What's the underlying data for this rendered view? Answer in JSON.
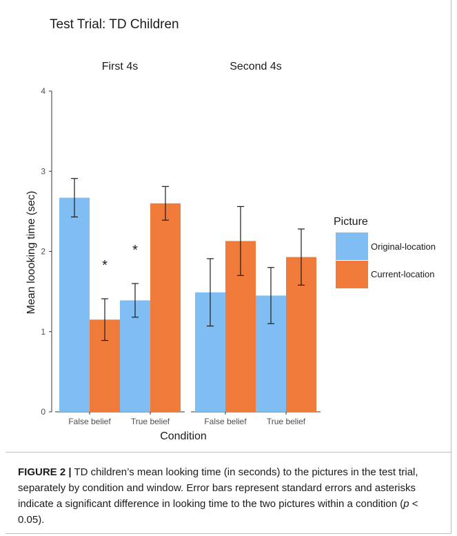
{
  "chart_data": {
    "type": "bar",
    "title": "Test Trial: TD Children",
    "xlabel": "Condition",
    "ylabel": "Mean loooking time (sec)",
    "ylim": [
      0,
      4
    ],
    "yticks": [
      0,
      1,
      2,
      3,
      4
    ],
    "grid": false,
    "legend": {
      "title": "Picture",
      "position": "right"
    },
    "panels": [
      {
        "label": "First 4s",
        "categories": [
          "False belief",
          "True belief"
        ],
        "series": [
          {
            "name": "Original-location",
            "color": "#7fbdf2",
            "values": [
              2.67,
              1.39
            ],
            "errors": [
              0.24,
              0.21
            ]
          },
          {
            "name": "Current-location",
            "color": "#f07a3a",
            "values": [
              1.15,
              2.6
            ],
            "errors": [
              0.26,
              0.21
            ]
          }
        ],
        "annotations": [
          {
            "category": "False belief",
            "text": "*"
          },
          {
            "category": "True belief",
            "text": "*"
          }
        ]
      },
      {
        "label": "Second 4s",
        "categories": [
          "False belief",
          "True belief"
        ],
        "series": [
          {
            "name": "Original-location",
            "color": "#7fbdf2",
            "values": [
              1.49,
              1.45
            ],
            "errors": [
              0.42,
              0.35
            ]
          },
          {
            "name": "Current-location",
            "color": "#f07a3a",
            "values": [
              2.13,
              1.93
            ],
            "errors": [
              0.43,
              0.35
            ]
          }
        ],
        "annotations": []
      }
    ]
  },
  "caption": {
    "label": "FIGURE 2 |",
    "text": " TD children’s mean looking time (in seconds) to the pictures in the test trial, separately by condition and window. Error bars represent standard errors and asterisks indicate a significant difference in looking time to the two pictures within a condition (",
    "p_symbol": "p",
    "p_rest": " < 0.05)."
  }
}
